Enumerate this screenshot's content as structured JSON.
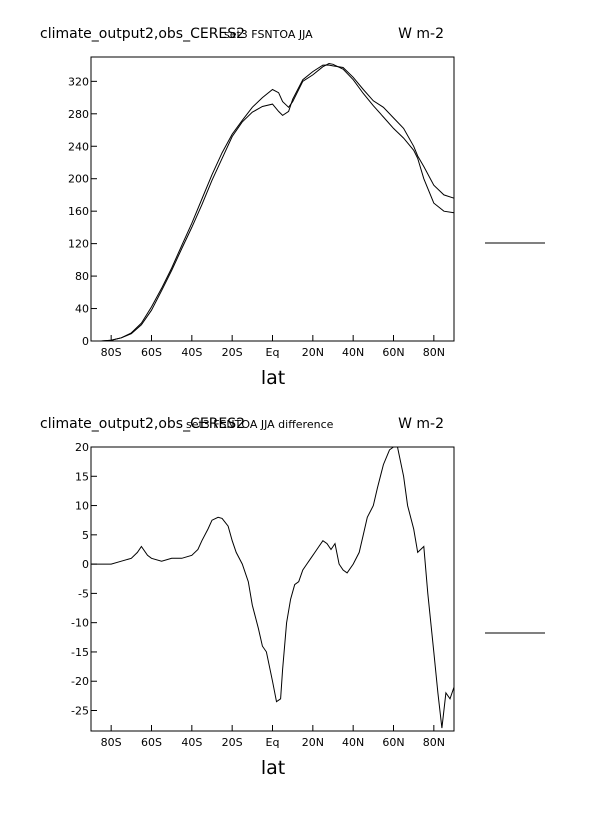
{
  "chart_data": [
    {
      "type": "line",
      "title": "climate_output2,obs_CERES2",
      "subtitle": "set3 FSNTOA JJA",
      "units": "W m-2",
      "xlabel": "lat",
      "xlim": [
        -90,
        90
      ],
      "ylim": [
        0,
        350
      ],
      "x_ticks": [
        -80,
        -60,
        -40,
        -20,
        0,
        20,
        40,
        60,
        80
      ],
      "x_tick_labels": [
        "80S",
        "60S",
        "40S",
        "20S",
        "Eq",
        "20N",
        "40N",
        "60N",
        "80N"
      ],
      "y_ticks": [
        0,
        40,
        80,
        120,
        160,
        200,
        240,
        280,
        320
      ],
      "y_tick_labels": [
        "0",
        "40",
        "80",
        "120",
        "160",
        "200",
        "240",
        "280",
        "320"
      ],
      "series": [
        {
          "x": [
            -90,
            -85,
            -80,
            -75,
            -70,
            -65,
            -60,
            -55,
            -50,
            -45,
            -40,
            -35,
            -30,
            -25,
            -20,
            -15,
            -10,
            -5,
            0,
            3,
            5,
            8,
            10,
            15,
            20,
            25,
            28,
            30,
            35,
            40,
            45,
            50,
            55,
            60,
            65,
            70,
            72,
            75,
            80,
            85,
            90
          ],
          "y": [
            0,
            0,
            1,
            4,
            10,
            22,
            42,
            65,
            90,
            118,
            145,
            175,
            205,
            232,
            255,
            272,
            288,
            300,
            310,
            306,
            295,
            288,
            295,
            320,
            328,
            338,
            342,
            341,
            335,
            322,
            305,
            290,
            276,
            262,
            250,
            235,
            225,
            200,
            170,
            160,
            158
          ]
        },
        {
          "x": [
            -90,
            -85,
            -80,
            -75,
            -70,
            -65,
            -60,
            -55,
            -50,
            -45,
            -40,
            -35,
            -30,
            -25,
            -20,
            -15,
            -10,
            -5,
            0,
            3,
            5,
            8,
            10,
            15,
            20,
            25,
            28,
            30,
            35,
            40,
            45,
            50,
            55,
            60,
            65,
            70,
            72,
            75,
            80,
            85,
            90
          ],
          "y": [
            0,
            0,
            1,
            4,
            9,
            20,
            38,
            62,
            87,
            114,
            140,
            168,
            198,
            225,
            252,
            270,
            282,
            289,
            292,
            283,
            278,
            283,
            298,
            322,
            332,
            340,
            340,
            339,
            337,
            325,
            310,
            296,
            288,
            275,
            262,
            240,
            228,
            215,
            192,
            180,
            176
          ]
        }
      ]
    },
    {
      "type": "line",
      "title": "climate_output2,obs_CERES2",
      "subtitle": "set3 FSNTOA JJA difference",
      "units": "W m-2",
      "xlabel": "lat",
      "xlim": [
        -90,
        90
      ],
      "ylim": [
        -28.5,
        20
      ],
      "x_ticks": [
        -80,
        -60,
        -40,
        -20,
        0,
        20,
        40,
        60,
        80
      ],
      "x_tick_labels": [
        "80S",
        "60S",
        "40S",
        "20S",
        "Eq",
        "20N",
        "40N",
        "60N",
        "80N"
      ],
      "y_ticks": [
        20,
        15,
        10,
        5,
        0,
        -5,
        -10,
        -15,
        -20,
        -25
      ],
      "y_tick_labels": [
        "20",
        "15",
        "10",
        "5",
        "0",
        "-5",
        "-10",
        "-15",
        "-20",
        "-25"
      ],
      "series": [
        {
          "x": [
            -90,
            -80,
            -75,
            -70,
            -67,
            -65,
            -62,
            -60,
            -55,
            -50,
            -45,
            -40,
            -37,
            -35,
            -32,
            -30,
            -27,
            -25,
            -22,
            -20,
            -18,
            -15,
            -12,
            -10,
            -7,
            -5,
            -3,
            0,
            2,
            4,
            5,
            7,
            9,
            11,
            13,
            15,
            17,
            19,
            21,
            23,
            25,
            27,
            29,
            31,
            33,
            35,
            37,
            40,
            43,
            45,
            47,
            50,
            52,
            55,
            58,
            60,
            62,
            65,
            67,
            70,
            72,
            75,
            77,
            80,
            82,
            84,
            86,
            88,
            90
          ],
          "y": [
            0,
            0,
            0.5,
            1,
            2,
            3,
            1.5,
            1,
            0.5,
            1,
            1,
            1.5,
            2.5,
            4,
            6,
            7.5,
            8,
            7.8,
            6.5,
            4,
            2,
            0,
            -3,
            -7,
            -11,
            -14,
            -15,
            -20,
            -23.5,
            -23,
            -18,
            -10,
            -6,
            -3.5,
            -3,
            -1,
            0,
            1,
            2,
            3,
            4,
            3.5,
            2.5,
            3.5,
            0,
            -1,
            -1.5,
            0,
            2,
            5,
            8,
            10,
            13,
            17,
            19.5,
            20,
            20,
            15,
            10,
            6,
            2,
            3,
            -5,
            -15,
            -22,
            -28,
            -22,
            -23,
            -21
          ]
        }
      ]
    }
  ]
}
